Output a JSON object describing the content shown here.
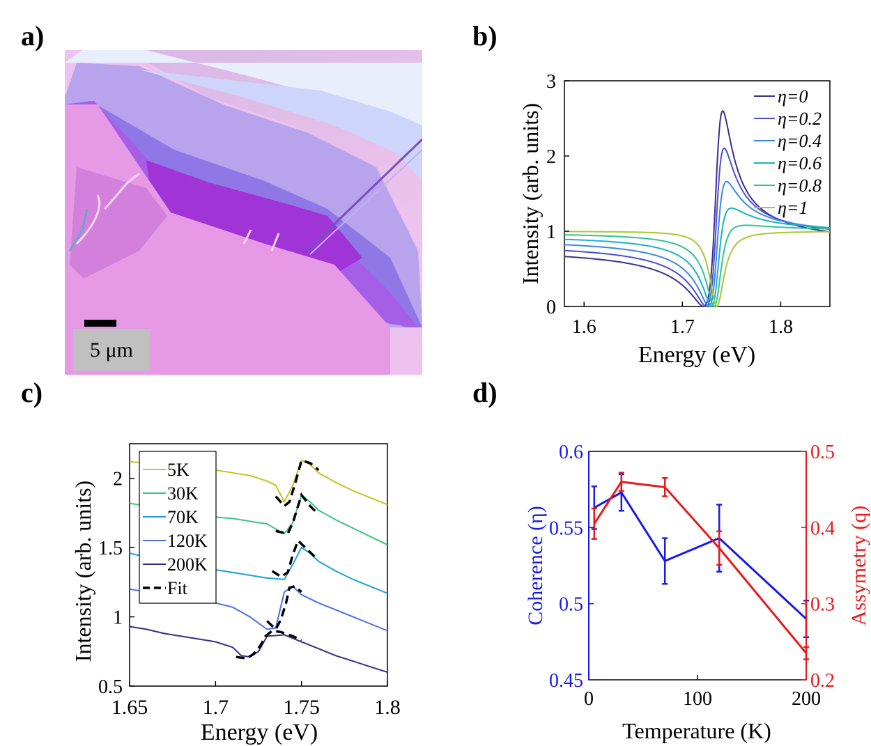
{
  "panels": {
    "a": "a)",
    "b": "b)",
    "c": "c)",
    "d": "d)"
  },
  "micrograph": {
    "scalebar_label": "5 μm"
  },
  "chart_data": [
    {
      "id": "b",
      "type": "line",
      "xlabel": "Energy (eV)",
      "ylabel": "Intensity (arb. units)",
      "xlim": [
        1.58,
        1.85
      ],
      "ylim": [
        0,
        3
      ],
      "xticks": [
        1.6,
        1.7,
        1.8
      ],
      "xtick_labels": [
        "1.6",
        "1.7",
        "1.8"
      ],
      "yticks": [
        0,
        1,
        2,
        3
      ],
      "ytick_labels": [
        "0",
        "1",
        "2",
        "3"
      ],
      "legend_position": "top-right",
      "model": {
        "type": "fano",
        "E0": 1.735,
        "gamma": 0.009,
        "baseline": 1.0
      },
      "series": [
        {
          "name": "η=0",
          "eta": 0.0,
          "color": "#3b2d8f"
        },
        {
          "name": "η=0.2",
          "eta": 0.2,
          "color": "#4a4fd1"
        },
        {
          "name": "η=0.4",
          "eta": 0.4,
          "color": "#3a86e0"
        },
        {
          "name": "η=0.6",
          "eta": 0.6,
          "color": "#1bb0c9"
        },
        {
          "name": "η=0.8",
          "eta": 0.8,
          "color": "#2fc392"
        },
        {
          "name": "η=1",
          "eta": 1.0,
          "color": "#a7c832"
        }
      ]
    },
    {
      "id": "c",
      "type": "line",
      "xlabel": "Energy (eV)",
      "ylabel": "Intensity (arb. units)",
      "xlim": [
        1.65,
        1.8
      ],
      "ylim": [
        0.5,
        2.25
      ],
      "xticks": [
        1.65,
        1.7,
        1.75,
        1.8
      ],
      "xtick_labels": [
        "1.65",
        "1.7",
        "1.75",
        "1.8"
      ],
      "yticks": [
        0.5,
        1,
        1.5,
        2
      ],
      "ytick_labels": [
        "0.5",
        "1",
        "1.5",
        "2"
      ],
      "legend_position": "top-left",
      "series": [
        {
          "name": "5K",
          "color": "#c9c21f",
          "x": [
            1.65,
            1.66,
            1.67,
            1.68,
            1.69,
            1.7,
            1.71,
            1.72,
            1.73,
            1.735,
            1.74,
            1.745,
            1.75,
            1.755,
            1.76,
            1.77,
            1.78,
            1.79,
            1.8
          ],
          "y": [
            2.12,
            2.11,
            2.1,
            2.09,
            2.07,
            2.06,
            2.04,
            2.02,
            1.98,
            1.95,
            1.83,
            1.95,
            2.13,
            2.1,
            2.04,
            1.97,
            1.91,
            1.86,
            1.81
          ]
        },
        {
          "name": "30K",
          "color": "#3cc383",
          "x": [
            1.65,
            1.66,
            1.67,
            1.68,
            1.69,
            1.7,
            1.71,
            1.72,
            1.73,
            1.74,
            1.745,
            1.75,
            1.755,
            1.76,
            1.77,
            1.78,
            1.79,
            1.8
          ],
          "y": [
            1.82,
            1.8,
            1.78,
            1.76,
            1.74,
            1.72,
            1.71,
            1.69,
            1.67,
            1.6,
            1.68,
            1.88,
            1.83,
            1.77,
            1.7,
            1.64,
            1.58,
            1.52
          ]
        },
        {
          "name": "70K",
          "color": "#1ba3d8",
          "x": [
            1.65,
            1.66,
            1.67,
            1.68,
            1.69,
            1.7,
            1.71,
            1.72,
            1.73,
            1.74,
            1.745,
            1.75,
            1.755,
            1.76,
            1.77,
            1.78,
            1.79,
            1.8
          ],
          "y": [
            1.46,
            1.43,
            1.4,
            1.38,
            1.36,
            1.34,
            1.32,
            1.3,
            1.28,
            1.27,
            1.38,
            1.5,
            1.46,
            1.4,
            1.33,
            1.27,
            1.22,
            1.17
          ]
        },
        {
          "name": "120K",
          "color": "#4c6ee6",
          "x": [
            1.65,
            1.66,
            1.67,
            1.68,
            1.69,
            1.7,
            1.71,
            1.72,
            1.73,
            1.735,
            1.74,
            1.745,
            1.75,
            1.76,
            1.77,
            1.78,
            1.79,
            1.8
          ],
          "y": [
            1.2,
            1.18,
            1.16,
            1.14,
            1.12,
            1.1,
            1.07,
            1.0,
            0.91,
            0.92,
            1.18,
            1.22,
            1.16,
            1.1,
            1.05,
            1.0,
            0.95,
            0.9
          ]
        },
        {
          "name": "200K",
          "color": "#3d2a87",
          "x": [
            1.65,
            1.66,
            1.67,
            1.68,
            1.69,
            1.7,
            1.71,
            1.715,
            1.72,
            1.725,
            1.73,
            1.74,
            1.75,
            1.76,
            1.77,
            1.78,
            1.79,
            1.8
          ],
          "y": [
            0.93,
            0.91,
            0.88,
            0.86,
            0.84,
            0.82,
            0.78,
            0.72,
            0.71,
            0.75,
            0.86,
            0.87,
            0.82,
            0.77,
            0.72,
            0.68,
            0.64,
            0.6
          ]
        }
      ],
      "fit_label": "Fit",
      "fits": [
        {
          "x": [
            1.735,
            1.74,
            1.743,
            1.746,
            1.75,
            1.755,
            1.76
          ],
          "y": [
            1.87,
            1.8,
            1.83,
            1.95,
            2.13,
            2.11,
            2.06
          ]
        },
        {
          "x": [
            1.735,
            1.742,
            1.745,
            1.748,
            1.75,
            1.755,
            1.76
          ],
          "y": [
            1.62,
            1.6,
            1.68,
            1.8,
            1.88,
            1.8,
            1.74
          ]
        },
        {
          "x": [
            1.733,
            1.738,
            1.742,
            1.745,
            1.748,
            1.753,
            1.758
          ],
          "y": [
            1.33,
            1.29,
            1.32,
            1.45,
            1.55,
            1.49,
            1.43
          ]
        },
        {
          "x": [
            1.73,
            1.735,
            1.738,
            1.741,
            1.743,
            1.746,
            1.75
          ],
          "y": [
            0.97,
            0.91,
            0.98,
            1.1,
            1.21,
            1.22,
            1.18
          ]
        },
        {
          "x": [
            1.712,
            1.718,
            1.722,
            1.726,
            1.729,
            1.733,
            1.738,
            1.745,
            1.75
          ],
          "y": [
            0.71,
            0.7,
            0.73,
            0.79,
            0.86,
            0.9,
            0.89,
            0.86,
            0.83
          ]
        }
      ]
    },
    {
      "id": "d",
      "type": "line",
      "xlabel": "Temperature (K)",
      "xlim": [
        0,
        200
      ],
      "xticks": [
        0,
        100,
        200
      ],
      "xtick_labels": [
        "0",
        "100",
        "200"
      ],
      "left_axis": {
        "label": "Coherence (η)",
        "color": "#1a1ae6",
        "ylim": [
          0.45,
          0.6
        ],
        "ticks": [
          0.45,
          0.5,
          0.55,
          0.6
        ],
        "tick_labels": [
          "0.45",
          "0.5",
          "0.55",
          "0.6"
        ]
      },
      "right_axis": {
        "label": "Assymetry (q)",
        "color": "#e61a1a",
        "ylim": [
          0.2,
          0.5
        ],
        "ticks": [
          0.2,
          0.3,
          0.4,
          0.5
        ],
        "tick_labels": [
          "0.2",
          "0.3",
          "0.4",
          "0.5"
        ]
      },
      "series": [
        {
          "name": "Coherence (η)",
          "axis": "left",
          "color": "#1a1ae6",
          "x": [
            5,
            30,
            70,
            120,
            200
          ],
          "y": [
            0.563,
            0.573,
            0.528,
            0.543,
            0.49
          ],
          "err": [
            0.014,
            0.012,
            0.015,
            0.022,
            0.012
          ]
        },
        {
          "name": "Assymetry (q)",
          "axis": "right",
          "color": "#e61a1a",
          "x": [
            5,
            30,
            70,
            120,
            200
          ],
          "y": [
            0.405,
            0.46,
            0.453,
            0.373,
            0.235
          ],
          "err": [
            0.02,
            0.012,
            0.012,
            0.022,
            0.008
          ]
        }
      ]
    }
  ]
}
